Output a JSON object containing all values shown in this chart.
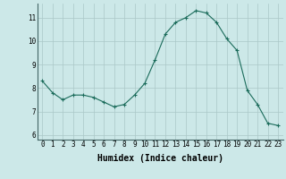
{
  "x": [
    0,
    1,
    2,
    3,
    4,
    5,
    6,
    7,
    8,
    9,
    10,
    11,
    12,
    13,
    14,
    15,
    16,
    17,
    18,
    19,
    20,
    21,
    22,
    23
  ],
  "y": [
    8.3,
    7.8,
    7.5,
    7.7,
    7.7,
    7.6,
    7.4,
    7.2,
    7.3,
    7.7,
    8.2,
    9.2,
    10.3,
    10.8,
    11.0,
    11.3,
    11.2,
    10.8,
    10.1,
    9.6,
    7.9,
    7.3,
    6.5,
    6.4
  ],
  "xlabel": "Humidex (Indice chaleur)",
  "ylabel": "",
  "ylim": [
    5.8,
    11.6
  ],
  "yticks": [
    6,
    7,
    8,
    9,
    10,
    11
  ],
  "xticks": [
    0,
    1,
    2,
    3,
    4,
    5,
    6,
    7,
    8,
    9,
    10,
    11,
    12,
    13,
    14,
    15,
    16,
    17,
    18,
    19,
    20,
    21,
    22,
    23
  ],
  "line_color": "#1a6b5a",
  "marker": "+",
  "bg_color": "#cce8e8",
  "grid_color": "#aac8c8",
  "xlabel_fontsize": 7,
  "tick_fontsize": 5.5
}
